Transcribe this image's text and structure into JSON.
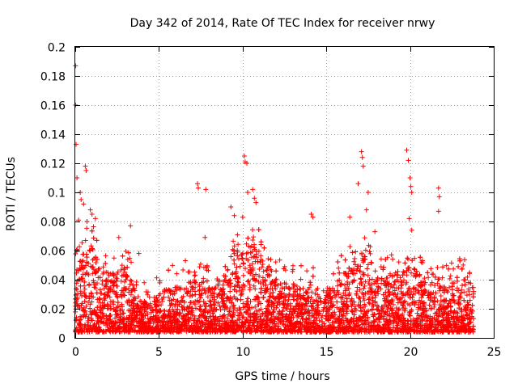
{
  "chart_data": {
    "type": "scatter",
    "title": "Day 342 of 2014, Rate Of TEC Index for receiver nrwy",
    "xlabel": "GPS time / hours",
    "ylabel": "ROTI / TECUs",
    "xlim": [
      0,
      25
    ],
    "ylim": [
      0,
      0.2
    ],
    "x_ticks": [
      0,
      5,
      10,
      15,
      20,
      25
    ],
    "x_tick_labels": [
      "0",
      "5",
      "10",
      "15",
      "20",
      "25"
    ],
    "y_ticks": [
      0,
      0.02,
      0.04,
      0.06,
      0.08,
      0.1,
      0.12,
      0.14,
      0.16,
      0.18,
      0.2
    ],
    "y_tick_labels": [
      "0",
      "0.02",
      "0.04",
      "0.06",
      "0.08",
      "0.1",
      "0.12",
      "0.14",
      "0.16",
      "0.18",
      "0.2"
    ],
    "grid": true,
    "marker": "+",
    "color": "#ff0000",
    "data_range_x": [
      0,
      23.8
    ],
    "envelope": [
      [
        0.0,
        0.045
      ],
      [
        0.5,
        0.06
      ],
      [
        1.0,
        0.065
      ],
      [
        1.5,
        0.05
      ],
      [
        2.0,
        0.045
      ],
      [
        2.5,
        0.05
      ],
      [
        3.0,
        0.05
      ],
      [
        3.5,
        0.035
      ],
      [
        4.0,
        0.025
      ],
      [
        4.5,
        0.028
      ],
      [
        5.0,
        0.03
      ],
      [
        5.5,
        0.035
      ],
      [
        6.0,
        0.035
      ],
      [
        6.5,
        0.038
      ],
      [
        7.0,
        0.04
      ],
      [
        7.5,
        0.04
      ],
      [
        8.0,
        0.035
      ],
      [
        8.5,
        0.04
      ],
      [
        9.0,
        0.045
      ],
      [
        9.5,
        0.055
      ],
      [
        10.0,
        0.06
      ],
      [
        10.5,
        0.065
      ],
      [
        11.0,
        0.06
      ],
      [
        11.5,
        0.045
      ],
      [
        12.0,
        0.04
      ],
      [
        12.5,
        0.038
      ],
      [
        13.0,
        0.038
      ],
      [
        13.5,
        0.035
      ],
      [
        14.0,
        0.035
      ],
      [
        14.5,
        0.032
      ],
      [
        15.0,
        0.035
      ],
      [
        15.5,
        0.035
      ],
      [
        16.0,
        0.045
      ],
      [
        16.5,
        0.05
      ],
      [
        17.0,
        0.06
      ],
      [
        17.5,
        0.055
      ],
      [
        18.0,
        0.045
      ],
      [
        18.5,
        0.045
      ],
      [
        19.0,
        0.045
      ],
      [
        19.5,
        0.045
      ],
      [
        20.0,
        0.05
      ],
      [
        20.5,
        0.045
      ],
      [
        21.0,
        0.038
      ],
      [
        21.5,
        0.04
      ],
      [
        22.0,
        0.035
      ],
      [
        22.5,
        0.038
      ],
      [
        23.0,
        0.04
      ],
      [
        23.5,
        0.04
      ],
      [
        23.8,
        0.038
      ]
    ],
    "peaks": [
      [
        0.02,
        0.187
      ],
      [
        0.02,
        0.16
      ],
      [
        0.05,
        0.133
      ],
      [
        0.1,
        0.11
      ],
      [
        0.3,
        0.1
      ],
      [
        0.35,
        0.095
      ],
      [
        0.5,
        0.092
      ],
      [
        0.6,
        0.118
      ],
      [
        0.65,
        0.115
      ],
      [
        0.7,
        0.08
      ],
      [
        0.9,
        0.088
      ],
      [
        1.0,
        0.085
      ],
      [
        1.2,
        0.082
      ],
      [
        0.2,
        0.081
      ],
      [
        2.6,
        0.069
      ],
      [
        3.3,
        0.077
      ],
      [
        3.8,
        0.058
      ],
      [
        7.3,
        0.106
      ],
      [
        7.35,
        0.103
      ],
      [
        7.8,
        0.102
      ],
      [
        7.75,
        0.069
      ],
      [
        9.3,
        0.09
      ],
      [
        9.5,
        0.084
      ],
      [
        10.0,
        0.083
      ],
      [
        10.1,
        0.125
      ],
      [
        10.15,
        0.121
      ],
      [
        10.25,
        0.12
      ],
      [
        10.3,
        0.1
      ],
      [
        10.6,
        0.102
      ],
      [
        10.7,
        0.096
      ],
      [
        10.8,
        0.093
      ],
      [
        14.1,
        0.085
      ],
      [
        14.2,
        0.083
      ],
      [
        16.4,
        0.083
      ],
      [
        16.9,
        0.106
      ],
      [
        17.1,
        0.128
      ],
      [
        17.15,
        0.124
      ],
      [
        17.2,
        0.118
      ],
      [
        17.5,
        0.1
      ],
      [
        17.4,
        0.088
      ],
      [
        17.9,
        0.073
      ],
      [
        19.8,
        0.129
      ],
      [
        19.9,
        0.122
      ],
      [
        20.0,
        0.11
      ],
      [
        20.05,
        0.104
      ],
      [
        20.1,
        0.1
      ],
      [
        19.95,
        0.082
      ],
      [
        20.1,
        0.074
      ],
      [
        21.7,
        0.103
      ],
      [
        21.75,
        0.097
      ],
      [
        21.7,
        0.087
      ]
    ]
  }
}
